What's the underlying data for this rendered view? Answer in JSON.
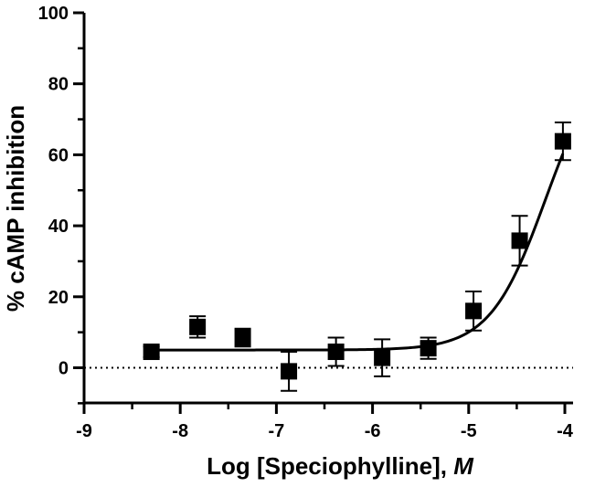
{
  "chart_data": {
    "type": "scatter",
    "title": "",
    "xlabel": "Log [Speciophylline], ",
    "xlabel_italic": "M",
    "ylabel": "% cAMP inhibition",
    "xlim": [
      -9,
      -3.9
    ],
    "ylim": [
      -10,
      100
    ],
    "x_ticks": [
      -9,
      -8,
      -7,
      -6,
      -5,
      -4
    ],
    "x_tick_labels": [
      "-9",
      "-8",
      "-7",
      "-6",
      "-5",
      "-4"
    ],
    "y_ticks": [
      0,
      20,
      40,
      60,
      80,
      100
    ],
    "y_tick_labels": [
      "0",
      "20",
      "40",
      "60",
      "80",
      "100"
    ],
    "grid": false,
    "reference_line": {
      "y": 0,
      "style": "dotted"
    },
    "series": [
      {
        "marker": "square",
        "color": "#000000",
        "points": [
          {
            "x": -8.3,
            "y": 4.5,
            "err": 1.5
          },
          {
            "x": -7.82,
            "y": 11.5,
            "err": 3.0
          },
          {
            "x": -7.35,
            "y": 8.5,
            "err": 2.5
          },
          {
            "x": -6.87,
            "y": -1.0,
            "err": 5.5
          },
          {
            "x": -6.38,
            "y": 4.5,
            "err": 4.0
          },
          {
            "x": -5.9,
            "y": 2.8,
            "err": 5.2
          },
          {
            "x": -5.42,
            "y": 5.5,
            "err": 3.0
          },
          {
            "x": -4.95,
            "y": 16.0,
            "err": 5.5
          },
          {
            "x": -4.47,
            "y": 35.8,
            "err": 7.0
          },
          {
            "x": -4.02,
            "y": 63.8,
            "err": 5.3
          }
        ]
      }
    ],
    "fit_curve": {
      "model": "four-parameter logistic",
      "bottom": 5.0,
      "top": 90,
      "log_ec50": -4.2,
      "hill_slope": 1.5,
      "x_range": [
        -8.3,
        -4.02
      ]
    }
  }
}
